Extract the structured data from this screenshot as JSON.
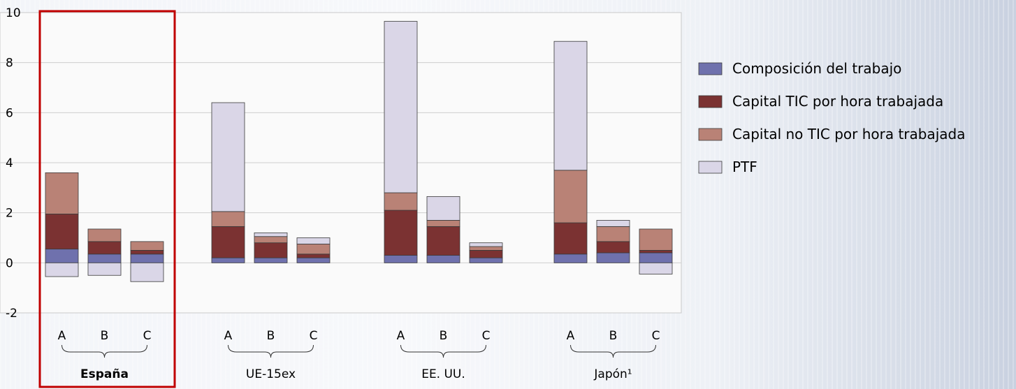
{
  "chart_data": {
    "type": "bar",
    "stacked": true,
    "ylim": [
      -2,
      10
    ],
    "yticks": [
      -2,
      0,
      2,
      4,
      6,
      8,
      10
    ],
    "grid": true,
    "legend_position": "right",
    "highlight_group": "España",
    "groups": [
      {
        "label": "España",
        "bold": true,
        "categories": [
          "A",
          "B",
          "C"
        ]
      },
      {
        "label": "UE-15ex",
        "bold": false,
        "categories": [
          "A",
          "B",
          "C"
        ]
      },
      {
        "label": "EE. UU.",
        "bold": false,
        "categories": [
          "A",
          "B",
          "C"
        ]
      },
      {
        "label": "Japón¹",
        "bold": false,
        "categories": [
          "A",
          "B",
          "C"
        ]
      }
    ],
    "series": [
      {
        "name": "Composición del trabajo",
        "color": "#6f71ad",
        "values": [
          0.55,
          0.35,
          0.35,
          0.2,
          0.2,
          0.2,
          0.3,
          0.3,
          0.2,
          0.35,
          0.4,
          0.4
        ]
      },
      {
        "name": "Capital TIC por hora trabajada",
        "color": "#7b3232",
        "values": [
          1.4,
          0.5,
          0.15,
          1.25,
          0.6,
          0.15,
          1.8,
          1.15,
          0.3,
          1.25,
          0.45,
          0.1
        ]
      },
      {
        "name": "Capital no TIC por hora trabajada",
        "color": "#b98276",
        "values": [
          1.65,
          0.5,
          0.35,
          0.6,
          0.25,
          0.4,
          0.7,
          0.25,
          0.15,
          2.1,
          0.6,
          0.85
        ]
      },
      {
        "name": "PTF",
        "color": "#dad6e7",
        "values": [
          -0.55,
          -0.5,
          -0.75,
          4.35,
          0.15,
          0.25,
          6.85,
          0.95,
          0.15,
          5.15,
          0.25,
          -0.45
        ]
      }
    ]
  }
}
